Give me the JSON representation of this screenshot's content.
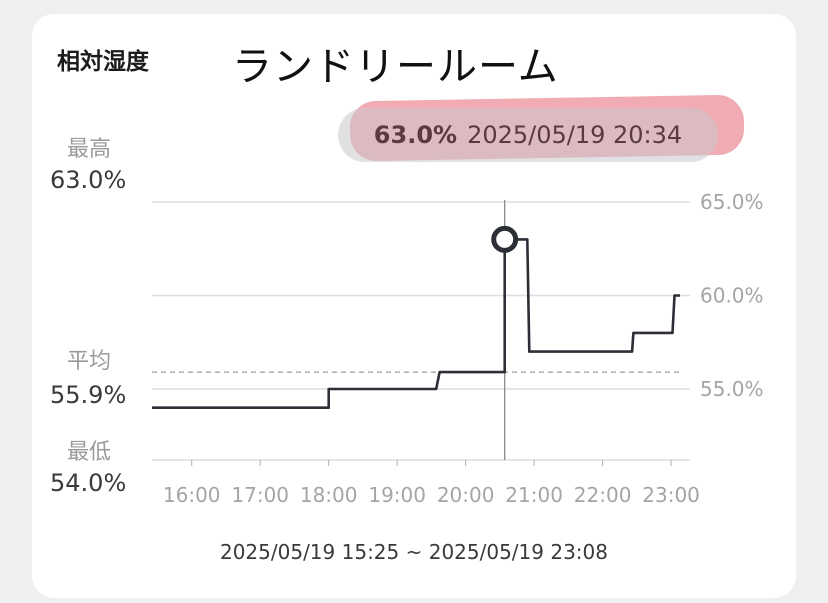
{
  "header": {
    "metric": "相対湿度",
    "room": "ランドリールーム"
  },
  "tooltip": {
    "value": "63.0%",
    "time": "2025/05/19 20:34"
  },
  "stats": {
    "max_label": "最高",
    "max_value": "63.0%",
    "avg_label": "平均",
    "avg_value": "55.9%",
    "min_label": "最低",
    "min_value": "54.0%"
  },
  "range_text": "2025/05/19 15:25 ~ 2025/05/19 23:08",
  "colors": {
    "line": "#2c2f36",
    "grid": "#dedee2",
    "highlight": "#f0a3ab",
    "tooltip_bg": "#c8c8cc"
  },
  "chart_data": {
    "type": "line",
    "step": true,
    "x_unit": "hours",
    "xlim": [
      15.42,
      23.13
    ],
    "ylim": [
      51.2,
      65.0
    ],
    "x_ticks": [
      16,
      17,
      18,
      19,
      20,
      21,
      22,
      23
    ],
    "x_tick_labels": [
      "16:00",
      "17:00",
      "18:00",
      "19:00",
      "20:00",
      "21:00",
      "22:00",
      "23:00"
    ],
    "y_ticks": [
      55,
      60,
      65
    ],
    "y_tick_labels": [
      "55.0%",
      "60.0%",
      "65.0%"
    ],
    "average": 55.9,
    "selected": {
      "x": 20.57,
      "y": 63.0
    },
    "points": [
      {
        "x": 15.42,
        "y": 54.0
      },
      {
        "x": 18.0,
        "y": 54.0
      },
      {
        "x": 18.0,
        "y": 55.0
      },
      {
        "x": 19.57,
        "y": 55.0
      },
      {
        "x": 19.62,
        "y": 55.9
      },
      {
        "x": 20.57,
        "y": 55.9
      },
      {
        "x": 20.57,
        "y": 63.0
      },
      {
        "x": 20.9,
        "y": 63.0
      },
      {
        "x": 20.93,
        "y": 57.0
      },
      {
        "x": 22.43,
        "y": 57.0
      },
      {
        "x": 22.45,
        "y": 58.0
      },
      {
        "x": 23.02,
        "y": 58.0
      },
      {
        "x": 23.05,
        "y": 60.0
      },
      {
        "x": 23.13,
        "y": 60.0
      }
    ]
  }
}
